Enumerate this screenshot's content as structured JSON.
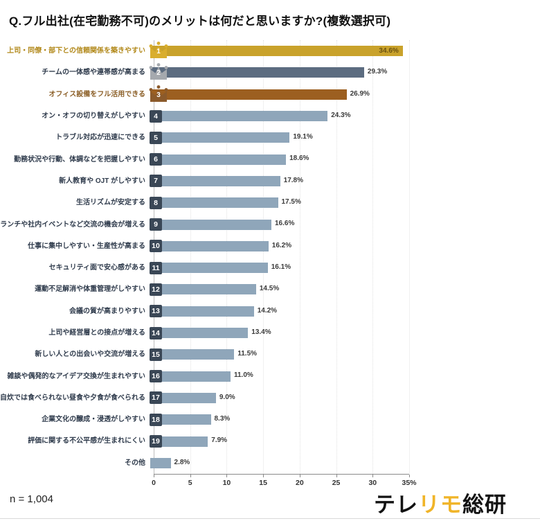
{
  "title": "Q.フル出社(在宅勤務不可)のメリットは何だと思いますか?(複数選択可)",
  "footer": {
    "sample_size": "n = 1,004",
    "brand": {
      "part1": "テレ",
      "part2": "リモ",
      "part3": "総研"
    }
  },
  "palette": {
    "gold": {
      "bar": "#C9A22B",
      "label": "#B2891B",
      "crown": "#D9AE2E",
      "value_inside": "#6B5210"
    },
    "silver": {
      "bar": "#5C6C80",
      "label": "#2F3B4C",
      "crown": "#A5A9AE"
    },
    "bronze": {
      "bar": "#9C5F20",
      "label": "#8B5E26",
      "crown": "#8B5A2B"
    },
    "default": {
      "bar": "#8FA6BA",
      "label": "#2F3B4C"
    },
    "badge_bg": "#3A4756",
    "value_text": "#3A3A3A",
    "grid": "#E2E2E2",
    "axis": "#8A8A8A"
  },
  "chart_data": {
    "type": "bar",
    "orientation": "horizontal",
    "title": "Q.フル出社(在宅勤務不可)のメリットは何だと思いますか?(複数選択可)",
    "xlim": [
      0,
      35
    ],
    "x_ticks": [
      "0",
      "5",
      "10",
      "15",
      "20",
      "25",
      "30",
      "35%"
    ],
    "grid": "dotted-vertical",
    "legend": "none",
    "items": [
      {
        "rank": 1,
        "label": "上司・同僚・部下との信頼関係を築きやすい",
        "value": 34.6,
        "display": "34.6%",
        "style": "gold"
      },
      {
        "rank": 2,
        "label": "チームの一体感や連帯感が高まる",
        "value": 29.3,
        "display": "29.3%",
        "style": "silver"
      },
      {
        "rank": 3,
        "label": "オフィス設備をフル活用できる",
        "value": 26.9,
        "display": "26.9%",
        "style": "bronze"
      },
      {
        "rank": 4,
        "label": "オン・オフの切り替えがしやすい",
        "value": 24.3,
        "display": "24.3%",
        "style": "default"
      },
      {
        "rank": 5,
        "label": "トラブル対応が迅速にできる",
        "value": 19.1,
        "display": "19.1%",
        "style": "default"
      },
      {
        "rank": 6,
        "label": "勤務状況や行動、体調などを把握しやすい",
        "value": 18.6,
        "display": "18.6%",
        "style": "default"
      },
      {
        "rank": 7,
        "label": "新人教育や OJT がしやすい",
        "value": 17.8,
        "display": "17.8%",
        "style": "default"
      },
      {
        "rank": 8,
        "label": "生活リズムが安定する",
        "value": 17.5,
        "display": "17.5%",
        "style": "default"
      },
      {
        "rank": 9,
        "label": "ランチや社内イベントなど交流の機会が増える",
        "value": 16.6,
        "display": "16.6%",
        "style": "default"
      },
      {
        "rank": 10,
        "label": "仕事に集中しやすい・生産性が高まる",
        "value": 16.2,
        "display": "16.2%",
        "style": "default"
      },
      {
        "rank": 11,
        "label": "セキュリティ面で安心感がある",
        "value": 16.1,
        "display": "16.1%",
        "style": "default"
      },
      {
        "rank": 12,
        "label": "運動不足解消や体重管理がしやすい",
        "value": 14.5,
        "display": "14.5%",
        "style": "default"
      },
      {
        "rank": 13,
        "label": "会議の質が高まりやすい",
        "value": 14.2,
        "display": "14.2%",
        "style": "default"
      },
      {
        "rank": 14,
        "label": "上司や経営層との接点が増える",
        "value": 13.4,
        "display": "13.4%",
        "style": "default"
      },
      {
        "rank": 15,
        "label": "新しい人との出会いや交流が増える",
        "value": 11.5,
        "display": "11.5%",
        "style": "default"
      },
      {
        "rank": 16,
        "label": "雑談や偶発的なアイデア交換が生まれやすい",
        "value": 11.0,
        "display": "11.0%",
        "style": "default"
      },
      {
        "rank": 17,
        "label": "自炊では食べられない昼食や夕食が食べられる",
        "value": 9.0,
        "display": "9.0%",
        "style": "default"
      },
      {
        "rank": 18,
        "label": "企業文化の醸成・浸透がしやすい",
        "value": 8.3,
        "display": "8.3%",
        "style": "default"
      },
      {
        "rank": 19,
        "label": "評価に関する不公平感が生まれにくい",
        "value": 7.9,
        "display": "7.9%",
        "style": "default"
      },
      {
        "rank": null,
        "label": "その他",
        "value": 2.8,
        "display": "2.8%",
        "style": "default"
      }
    ]
  }
}
